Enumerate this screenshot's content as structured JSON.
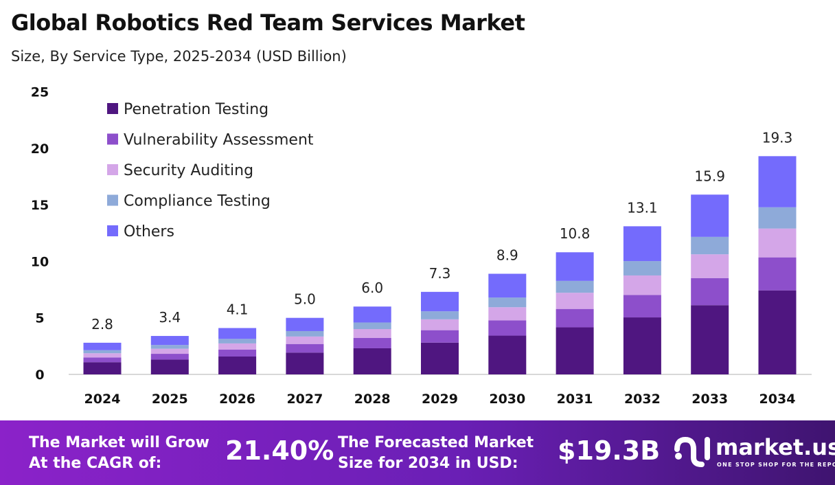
{
  "chart_data": {
    "type": "bar",
    "stacked": true,
    "title": "Global Robotics Red Team Services Market",
    "subtitle": "Size, By Service Type, 2025-2034 (USD Billion)",
    "categories": [
      "2024",
      "2025",
      "2026",
      "2027",
      "2028",
      "2029",
      "2030",
      "2031",
      "2032",
      "2033",
      "2034"
    ],
    "ylim": [
      0,
      25
    ],
    "yticks": [
      0,
      5,
      10,
      15,
      20,
      25
    ],
    "grid": false,
    "legend_position": "top-left",
    "series": [
      {
        "name": "Penetration Testing",
        "color": "#4f1680",
        "values": [
          1.08,
          1.31,
          1.58,
          1.93,
          2.31,
          2.81,
          3.43,
          4.16,
          5.04,
          6.12,
          7.43
        ]
      },
      {
        "name": "Vulnerability Assessment",
        "color": "#8d4fcb",
        "values": [
          0.42,
          0.51,
          0.62,
          0.76,
          0.91,
          1.1,
          1.34,
          1.63,
          1.98,
          2.4,
          2.92
        ]
      },
      {
        "name": "Security Auditing",
        "color": "#d4a6e8",
        "values": [
          0.37,
          0.45,
          0.54,
          0.66,
          0.79,
          0.96,
          1.17,
          1.43,
          1.73,
          2.1,
          2.55
        ]
      },
      {
        "name": "Compliance Testing",
        "color": "#8eaad9",
        "values": [
          0.27,
          0.33,
          0.4,
          0.48,
          0.58,
          0.71,
          0.86,
          1.05,
          1.27,
          1.54,
          1.88
        ]
      },
      {
        "name": "Others",
        "color": "#746bfc",
        "values": [
          0.66,
          0.8,
          0.96,
          1.17,
          1.41,
          1.72,
          2.1,
          2.53,
          3.08,
          3.74,
          4.52
        ]
      }
    ],
    "totals": [
      "2.8",
      "3.4",
      "4.1",
      "5.0",
      "6.0",
      "7.3",
      "8.9",
      "10.8",
      "13.1",
      "15.9",
      "19.3"
    ]
  },
  "footer": {
    "cagr_label_1": "The Market will Grow",
    "cagr_label_2": "At the CAGR of:",
    "cagr_value": "21.40%",
    "forecast_label_1": "The Forecasted Market",
    "forecast_label_2": "Size for 2034 in USD:",
    "forecast_value": "$19.3B",
    "logo_text": "market.us",
    "logo_tagline": "ONE STOP SHOP FOR THE REPORTS"
  }
}
